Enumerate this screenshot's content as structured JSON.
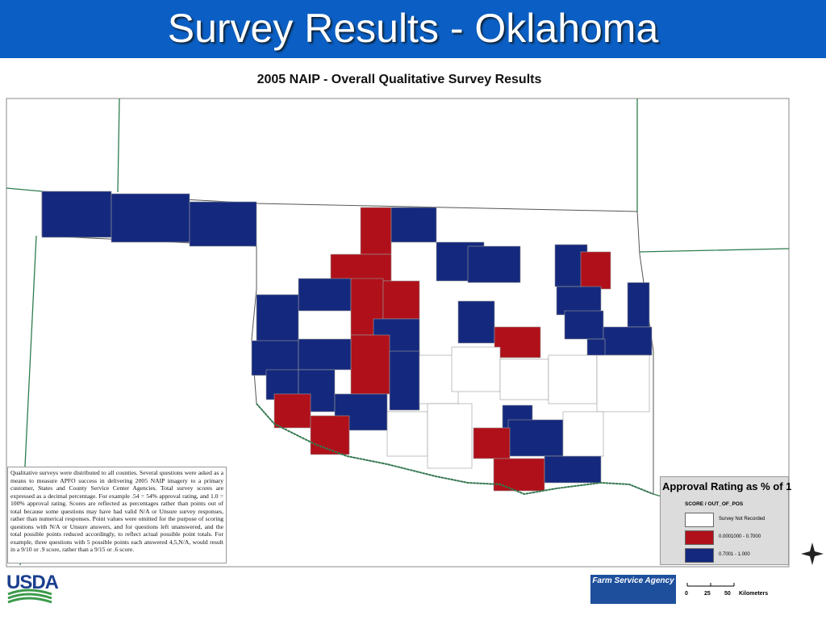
{
  "header": {
    "title": "Survey Results - Oklahoma"
  },
  "map": {
    "title": "2005 NAIP - Overall Qualitative Survey Results",
    "note": "Qualitative surveys were distributed to all counties. Several questions were asked as a means to measure APFO success in delivering 2005 NAIP imagery to a primary customer, States and County Service Center Agencies. Total survey scores are expressed as a decimal percentage. For example .54 = 54% approval rating, and 1.0 = 100% approval rating. Scores are reflected as percentages rather than points out of total because some questions may have had valid N/A or Unsure survey responses, rather than numerical responses. Point values were omitted for the purpose of scoring questions with N/A or Unsure answers, and for questions left unanswered, and the total possible points reduced accordingly, to reflect actual possible point totals. For example, three questions with 5 possible points each answered 4,5,N/A, would result in a 9/10 or .9 score, rather than a 9/15 or .6 score.",
    "legend": {
      "title": "Approval Rating as % of 1",
      "field": "SCORE / OUT_OF_POS",
      "items": [
        {
          "label": "Survey Not Recorded",
          "color": "#ffffff"
        },
        {
          "label": "0.0001000 - 0.7000",
          "color": "#b0101a"
        },
        {
          "label": "0.7001 - 1.000",
          "color": "#14297d"
        }
      ]
    },
    "scale": {
      "ticks": [
        "0",
        "25",
        "50"
      ],
      "unit": "Kilometers"
    }
  },
  "footer": {
    "usda": "USDA",
    "agency": "Farm Service Agency"
  }
}
